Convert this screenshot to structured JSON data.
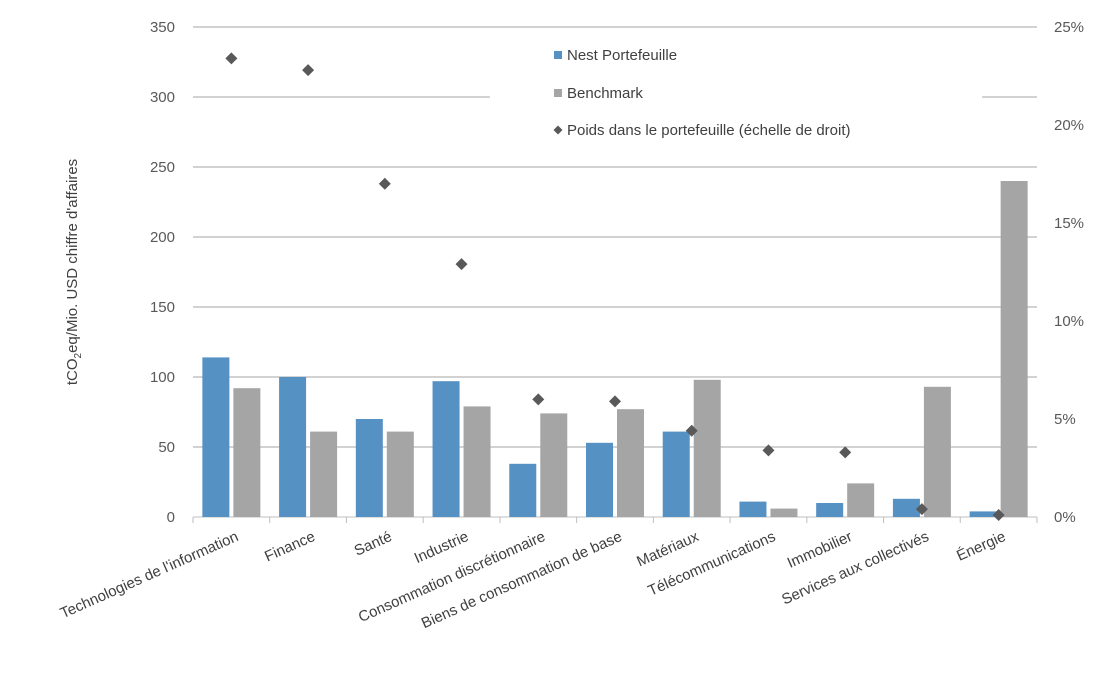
{
  "chart_data": {
    "type": "bar",
    "title": "",
    "ylabel": {
      "pre": "tCO",
      "sub": "2",
      "post": "eq/Mio. USD chiffre d'affaires"
    },
    "ylim": [
      0,
      350
    ],
    "y_ticks": [
      0,
      50,
      100,
      150,
      200,
      250,
      300,
      350
    ],
    "y2lim": [
      0,
      25
    ],
    "y2_ticks": [
      "0%",
      "5%",
      "10%",
      "15%",
      "20%",
      "25%"
    ],
    "y2_tick_values": [
      0,
      5,
      10,
      15,
      20,
      25
    ],
    "grid": true,
    "legend_position": "top-center",
    "categories": [
      "Technologies de l'information",
      "Finance",
      "Santé",
      "Industrie",
      "Consommation discrétionnaire",
      "Biens de consommation de base",
      "Matériaux",
      "Télécommunications",
      "Immobilier",
      "Services aux collectivés",
      "Énergie"
    ],
    "series": [
      {
        "name": "Nest Portefeuille",
        "kind": "bar",
        "axis": "left",
        "color": "#5591c3",
        "values": [
          114,
          100,
          70,
          97,
          38,
          53,
          61,
          11,
          10,
          13,
          4
        ]
      },
      {
        "name": "Benchmark",
        "kind": "bar",
        "axis": "left",
        "color": "#a5a5a5",
        "values": [
          92,
          61,
          61,
          79,
          74,
          77,
          98,
          6,
          24,
          93,
          240
        ]
      },
      {
        "name": "Poids dans le portefeuille (échelle de droit)",
        "kind": "marker",
        "axis": "right",
        "color": "#595959",
        "values": [
          23.4,
          22.8,
          17.0,
          12.9,
          6.0,
          5.9,
          4.4,
          3.4,
          3.3,
          0.4,
          0.1
        ]
      }
    ]
  }
}
